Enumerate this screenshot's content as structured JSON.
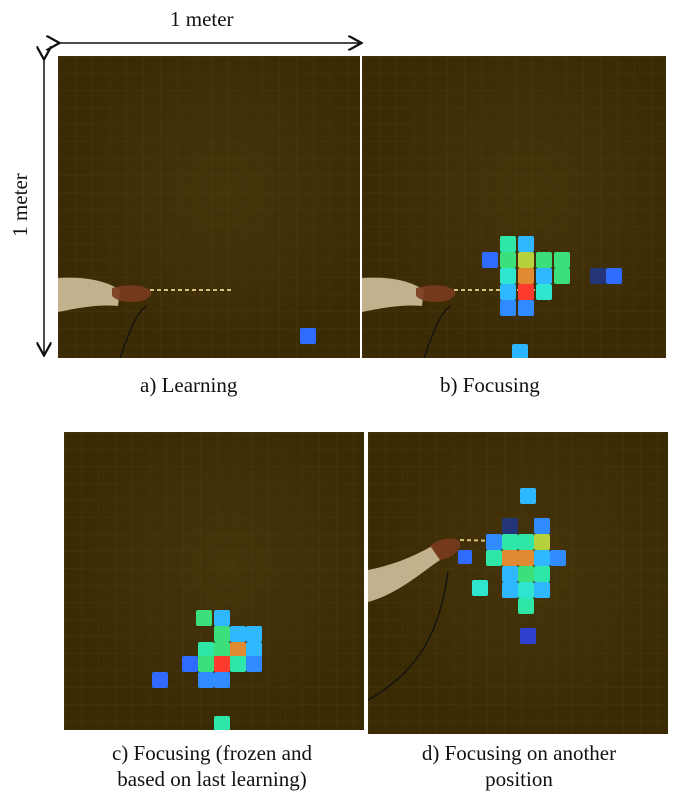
{
  "dimension_labels": {
    "horizontal": "1 meter",
    "vertical": "1 meter"
  },
  "panels": [
    {
      "id": "a",
      "caption": "a) Learning"
    },
    {
      "id": "b",
      "caption": "b) Focusing"
    },
    {
      "id": "c",
      "caption_line1": "c) Focusing (frozen and",
      "caption_line2": "based on last learning)"
    },
    {
      "id": "d",
      "caption_line1": "d) Focusing on another",
      "caption_line2": "position"
    }
  ],
  "colors": {
    "panel_bg": "#3b2b05",
    "blue": "#2f6bff",
    "light_blue": "#29b6ff",
    "cyan": "#2ee6d0",
    "green": "#3be07a",
    "yellow_green": "#b5d23c",
    "orange": "#e08a32",
    "red": "#ff3b2e"
  }
}
